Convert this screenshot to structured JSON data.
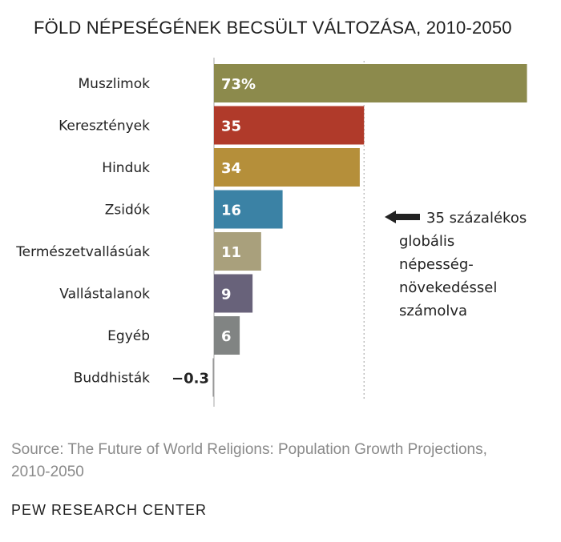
{
  "chart_data": {
    "type": "bar",
    "orientation": "horizontal",
    "title": "FÖLD NÉPESÉGÉNEK BECSÜLT VÁLTOZÁSA, 2010-2050",
    "categories": [
      "Muszlimok",
      "Keresztények",
      "Hinduk",
      "Zsidók",
      "Természetvallásúak",
      "Vallástalanok",
      "Egyéb",
      "Buddhisták"
    ],
    "values": [
      73,
      35,
      34,
      16,
      11,
      9,
      6,
      -0.3
    ],
    "value_labels": [
      "73%",
      "35",
      "34",
      "16",
      "11",
      "9",
      "6",
      "−0.3"
    ],
    "colors": [
      "#8c8a4c",
      "#b03a2a",
      "#b58f3a",
      "#3b82a5",
      "#a9a07c",
      "#68627a",
      "#818483",
      "#999999"
    ],
    "reference_line": 35,
    "annotation": [
      "35 százalékos",
      "globális",
      "népesség-",
      "növekedéssel",
      "számolva"
    ],
    "grid": false
  },
  "source": "Source: The Future of World Religions: Population Growth Projections, 2010-2050",
  "org": "PEW RESEARCH CENTER"
}
